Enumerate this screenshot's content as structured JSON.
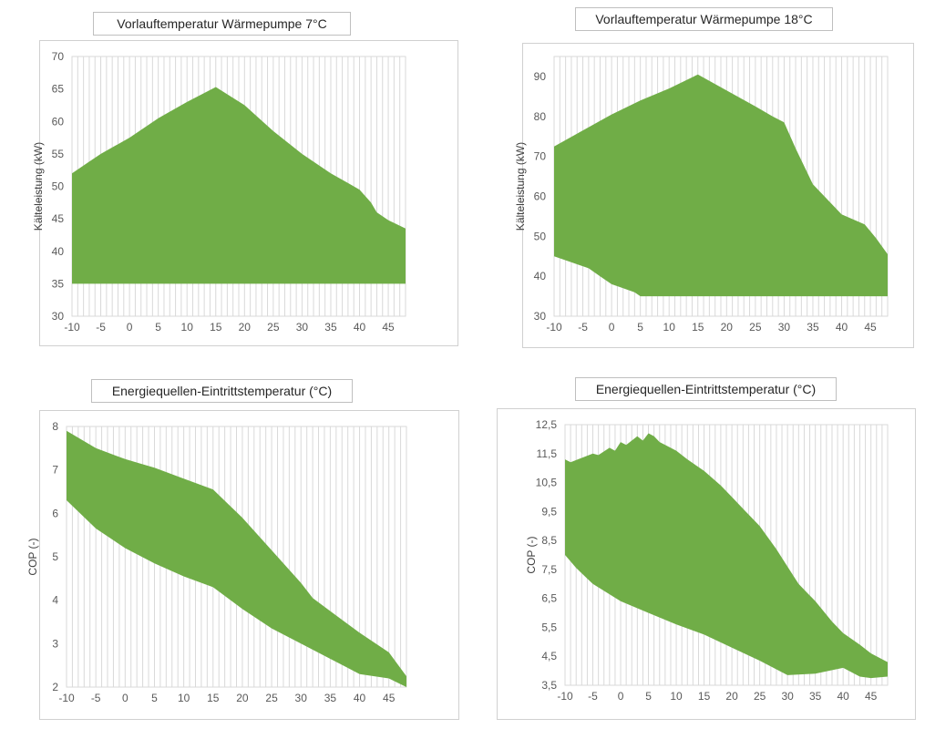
{
  "chart_data": [
    {
      "type": "area",
      "title": "Vorlauftemperatur Wärmepumpe 7°C",
      "xlabel": "",
      "ylabel": "Kälteleistung (kW)",
      "xlim": [
        -10,
        48
      ],
      "ylim": [
        30,
        70
      ],
      "xticks": [
        -10,
        -5,
        0,
        5,
        10,
        15,
        20,
        25,
        30,
        35,
        40,
        45
      ],
      "yticks": [
        30,
        35,
        40,
        45,
        50,
        55,
        60,
        65,
        70
      ],
      "grid": "vertical",
      "color": "#70ad47",
      "upper": [
        [
          -10,
          52
        ],
        [
          -7,
          53.8
        ],
        [
          -5,
          55
        ],
        [
          -2,
          56.5
        ],
        [
          0,
          57.5
        ],
        [
          5,
          60.5
        ],
        [
          10,
          63
        ],
        [
          15,
          65.3
        ],
        [
          20,
          62.5
        ],
        [
          25,
          58.5
        ],
        [
          30,
          55
        ],
        [
          35,
          52
        ],
        [
          38,
          50.5
        ],
        [
          40,
          49.5
        ],
        [
          42,
          47.5
        ],
        [
          43,
          46
        ],
        [
          45,
          44.8
        ],
        [
          48,
          43.5
        ]
      ],
      "lower": [
        [
          -10,
          35
        ],
        [
          48,
          35
        ]
      ]
    },
    {
      "type": "area",
      "title": "Vorlauftemperatur Wärmepumpe 18°C",
      "xlabel": "",
      "ylabel": "Kälteleistung (kW)",
      "xlim": [
        -10,
        48
      ],
      "ylim": [
        30,
        95
      ],
      "xticks": [
        -10,
        -5,
        0,
        5,
        10,
        15,
        20,
        25,
        30,
        35,
        40,
        45
      ],
      "yticks": [
        30,
        40,
        50,
        60,
        70,
        80,
        90
      ],
      "grid": "vertical",
      "color": "#70ad47",
      "upper": [
        [
          -10,
          72.5
        ],
        [
          -5,
          76.5
        ],
        [
          0,
          80.5
        ],
        [
          5,
          84
        ],
        [
          10,
          87
        ],
        [
          15,
          90.5
        ],
        [
          20,
          86.5
        ],
        [
          25,
          82.5
        ],
        [
          28,
          80
        ],
        [
          30,
          78.5
        ],
        [
          32,
          72
        ],
        [
          35,
          63
        ],
        [
          40,
          55.5
        ],
        [
          44,
          53
        ],
        [
          46,
          49.5
        ],
        [
          48,
          45.5
        ]
      ],
      "lower": [
        [
          -10,
          45
        ],
        [
          -8,
          44
        ],
        [
          -6,
          43
        ],
        [
          -4,
          42
        ],
        [
          -2,
          40
        ],
        [
          0,
          38
        ],
        [
          2,
          37
        ],
        [
          4,
          36
        ],
        [
          5,
          35
        ],
        [
          6,
          35
        ],
        [
          48,
          35
        ]
      ]
    },
    {
      "type": "area",
      "title": "Energiequellen-Eintrittstemperatur (°C)",
      "xlabel": "",
      "ylabel": "COP (-)",
      "xlim": [
        -10,
        48
      ],
      "ylim": [
        2,
        8
      ],
      "xticks": [
        -10,
        -5,
        0,
        5,
        10,
        15,
        20,
        25,
        30,
        35,
        40,
        45
      ],
      "yticks": [
        2,
        3,
        4,
        5,
        6,
        7,
        8
      ],
      "grid": "vertical",
      "color": "#70ad47",
      "upper": [
        [
          -10,
          7.9
        ],
        [
          -5,
          7.5
        ],
        [
          0,
          7.25
        ],
        [
          5,
          7.05
        ],
        [
          10,
          6.8
        ],
        [
          15,
          6.55
        ],
        [
          20,
          5.9
        ],
        [
          25,
          5.15
        ],
        [
          30,
          4.4
        ],
        [
          32,
          4.05
        ],
        [
          35,
          3.75
        ],
        [
          40,
          3.25
        ],
        [
          45,
          2.8
        ],
        [
          48,
          2.25
        ]
      ],
      "lower": [
        [
          -10,
          6.3
        ],
        [
          -5,
          5.65
        ],
        [
          0,
          5.2
        ],
        [
          5,
          4.85
        ],
        [
          10,
          4.55
        ],
        [
          15,
          4.3
        ],
        [
          20,
          3.8
        ],
        [
          25,
          3.35
        ],
        [
          30,
          3
        ],
        [
          35,
          2.65
        ],
        [
          40,
          2.3
        ],
        [
          45,
          2.2
        ],
        [
          48,
          2
        ]
      ]
    },
    {
      "type": "area",
      "title": "Energiequellen-Eintrittstemperatur (°C)",
      "xlabel": "",
      "ylabel": "COP (-)",
      "xlim": [
        -10,
        48
      ],
      "ylim": [
        3.5,
        12.5
      ],
      "xticks": [
        -10,
        -5,
        0,
        5,
        10,
        15,
        20,
        25,
        30,
        35,
        40,
        45
      ],
      "yticks": [
        3.5,
        4.5,
        5.5,
        6.5,
        7.5,
        8.5,
        9.5,
        10.5,
        11.5,
        12.5
      ],
      "ytick_labels": [
        "3,5",
        "4,5",
        "5,5",
        "6,5",
        "7,5",
        "8,5",
        "9,5",
        "10,5",
        "11,5",
        "12,5"
      ],
      "grid": "vertical",
      "color": "#70ad47",
      "upper": [
        [
          -10,
          11.3
        ],
        [
          -9,
          11.2
        ],
        [
          -7,
          11.35
        ],
        [
          -5,
          11.5
        ],
        [
          -4,
          11.45
        ],
        [
          -2,
          11.7
        ],
        [
          -1,
          11.6
        ],
        [
          0,
          11.9
        ],
        [
          1,
          11.8
        ],
        [
          3,
          12.1
        ],
        [
          4,
          11.95
        ],
        [
          5,
          12.2
        ],
        [
          6,
          12.1
        ],
        [
          7,
          11.9
        ],
        [
          8,
          11.8
        ],
        [
          10,
          11.6
        ],
        [
          12,
          11.3
        ],
        [
          15,
          10.9
        ],
        [
          18,
          10.4
        ],
        [
          20,
          10
        ],
        [
          22,
          9.6
        ],
        [
          25,
          9
        ],
        [
          28,
          8.2
        ],
        [
          30,
          7.6
        ],
        [
          32,
          7
        ],
        [
          35,
          6.4
        ],
        [
          38,
          5.7
        ],
        [
          40,
          5.3
        ],
        [
          43,
          4.9
        ],
        [
          45,
          4.6
        ],
        [
          48,
          4.3
        ]
      ],
      "lower": [
        [
          -10,
          8
        ],
        [
          -8,
          7.55
        ],
        [
          -5,
          7
        ],
        [
          0,
          6.4
        ],
        [
          5,
          6
        ],
        [
          10,
          5.6
        ],
        [
          15,
          5.25
        ],
        [
          20,
          4.8
        ],
        [
          25,
          4.35
        ],
        [
          30,
          3.85
        ],
        [
          35,
          3.9
        ],
        [
          40,
          4.1
        ],
        [
          43,
          3.8
        ],
        [
          45,
          3.75
        ],
        [
          48,
          3.8
        ]
      ]
    }
  ]
}
